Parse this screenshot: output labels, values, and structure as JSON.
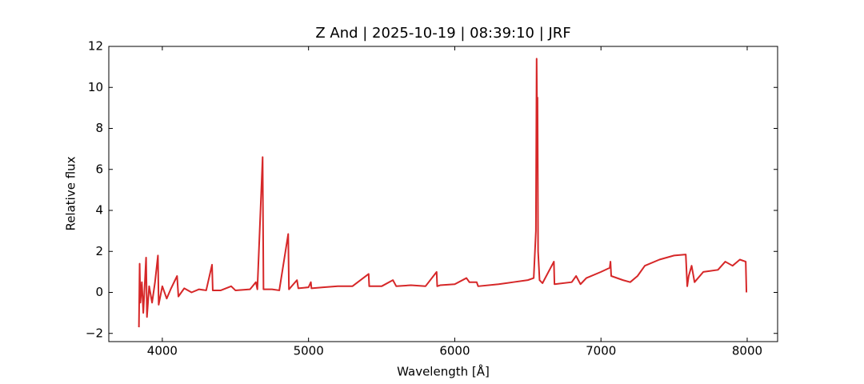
{
  "chart_data": {
    "type": "line",
    "title": "Z And | 2025-10-19 | 08:39:10 | JRF",
    "xlabel": "Wavelength [Å]",
    "ylabel": "Relative flux",
    "color": "#d62728",
    "x": [
      3840,
      3845,
      3850,
      3860,
      3870,
      3880,
      3889,
      3895,
      3910,
      3930,
      3950,
      3970,
      3975,
      4000,
      4030,
      4060,
      4101,
      4110,
      4150,
      4200,
      4250,
      4300,
      4340,
      4345,
      4400,
      4471,
      4500,
      4600,
      4640,
      4650,
      4686,
      4692,
      4750,
      4800,
      4861,
      4866,
      4921,
      4930,
      5000,
      5016,
      5020,
      5100,
      5200,
      5300,
      5411,
      5415,
      5500,
      5577,
      5600,
      5700,
      5800,
      5876,
      5880,
      5900,
      6000,
      6080,
      6100,
      6150,
      6160,
      6300,
      6400,
      6500,
      6540,
      6555,
      6560,
      6563,
      6566,
      6570,
      6580,
      6600,
      6678,
      6682,
      6800,
      6830,
      6860,
      6900,
      7000,
      7060,
      7065,
      7070,
      7150,
      7200,
      7250,
      7300,
      7400,
      7500,
      7580,
      7590,
      7600,
      7620,
      7640,
      7700,
      7800,
      7850,
      7900,
      7950,
      7990,
      7995
    ],
    "values": [
      -1.7,
      1.4,
      -0.5,
      0.5,
      -1.0,
      0.4,
      1.7,
      -1.2,
      0.3,
      -0.5,
      0.5,
      1.8,
      -0.6,
      0.3,
      -0.3,
      0.2,
      0.8,
      -0.2,
      0.2,
      0.0,
      0.15,
      0.1,
      1.35,
      0.1,
      0.1,
      0.3,
      0.1,
      0.15,
      0.5,
      0.15,
      6.6,
      0.15,
      0.15,
      0.1,
      2.85,
      0.15,
      0.6,
      0.2,
      0.25,
      0.5,
      0.2,
      0.25,
      0.3,
      0.3,
      0.9,
      0.3,
      0.3,
      0.6,
      0.3,
      0.35,
      0.3,
      1.0,
      0.3,
      0.35,
      0.4,
      0.7,
      0.5,
      0.5,
      0.3,
      0.4,
      0.5,
      0.6,
      0.7,
      3,
      11.4,
      8.8,
      9.5,
      2,
      0.6,
      0.45,
      1.5,
      0.4,
      0.5,
      0.8,
      0.4,
      0.7,
      1.0,
      1.2,
      1.5,
      0.8,
      0.6,
      0.5,
      0.8,
      1.3,
      1.6,
      1.8,
      1.85,
      0.3,
      0.8,
      1.3,
      0.5,
      1.0,
      1.1,
      1.5,
      1.3,
      1.6,
      1.5,
      0.0
    ],
    "xlim": [
      3634,
      8208
    ],
    "xticks": [
      4000,
      5000,
      6000,
      7000,
      8000
    ],
    "ylim": [
      -2.4,
      12
    ],
    "yticks": [
      {
        "value": -2,
        "label": "−2"
      },
      0,
      2,
      4,
      6,
      8,
      10,
      12
    ]
  }
}
